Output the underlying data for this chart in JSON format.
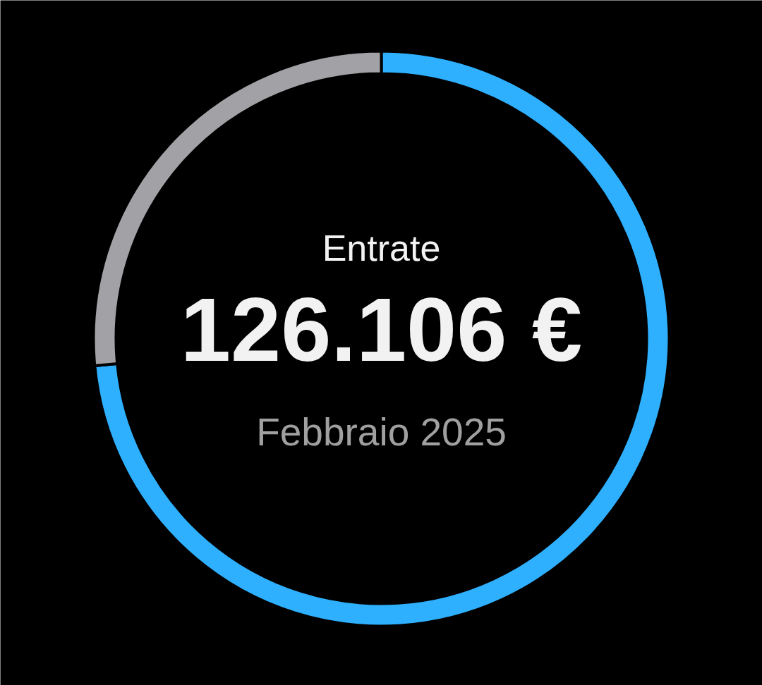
{
  "chart_data": {
    "type": "donut",
    "title": "Entrate",
    "subtitle": "Febbraio 2025",
    "annotations": [
      "126.106 €"
    ],
    "categories": [
      null,
      null
    ],
    "values": [
      73.5,
      26.5
    ],
    "colors": [
      "#2eb0ff",
      "#a2a2a6"
    ]
  }
}
